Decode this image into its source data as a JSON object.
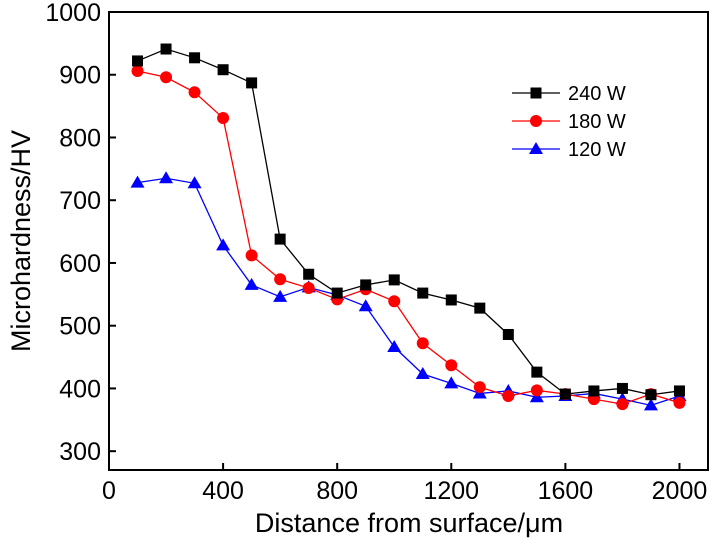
{
  "chart_data": {
    "type": "line",
    "title": "",
    "xlabel": "Distance from surface/μm",
    "ylabel": "Microhardness/HV",
    "xlim": [
      0,
      2100
    ],
    "ylim": [
      270,
      1000
    ],
    "xticks": [
      0,
      400,
      800,
      1200,
      1600,
      2000
    ],
    "yticks": [
      300,
      400,
      500,
      600,
      700,
      800,
      900,
      1000
    ],
    "xtick_labels": [
      "0",
      "400",
      "800",
      "1200",
      "1600",
      "2000"
    ],
    "ytick_labels": [
      "300",
      "400",
      "500",
      "600",
      "700",
      "800",
      "900",
      "1000"
    ],
    "grid": false,
    "legend_position": "top-right",
    "x": [
      100,
      200,
      300,
      400,
      500,
      600,
      700,
      800,
      900,
      1000,
      1100,
      1200,
      1300,
      1400,
      1500,
      1600,
      1700,
      1800,
      1900,
      2000
    ],
    "series": [
      {
        "name": "240 W",
        "color": "#000000",
        "marker": "square",
        "values": [
          922,
          941,
          927,
          908,
          887,
          638,
          582,
          552,
          565,
          573,
          552,
          541,
          528,
          486,
          426,
          391,
          396,
          400,
          390,
          396
        ]
      },
      {
        "name": "180 W",
        "color": "#ff0000",
        "marker": "circle",
        "values": [
          906,
          896,
          872,
          831,
          612,
          574,
          560,
          542,
          558,
          539,
          472,
          437,
          402,
          388,
          397,
          391,
          383,
          375,
          391,
          377
        ]
      },
      {
        "name": "120 W",
        "color": "#0000ff",
        "marker": "triangle",
        "values": [
          728,
          735,
          727,
          628,
          565,
          546,
          561,
          549,
          531,
          466,
          423,
          408,
          392,
          396,
          386,
          388,
          392,
          383,
          373,
          388
        ]
      }
    ]
  }
}
